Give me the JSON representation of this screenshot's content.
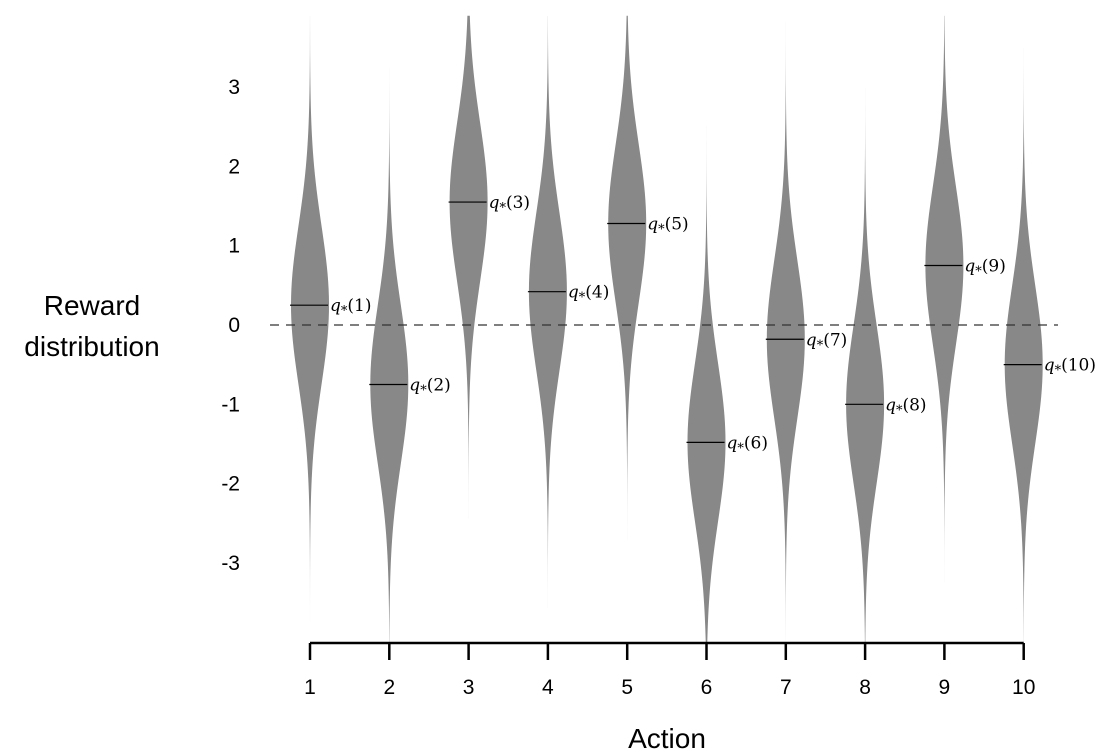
{
  "chart_data": {
    "type": "violin",
    "title": "",
    "xlabel": "Action",
    "ylabel_lines": [
      "Reward",
      "distribution"
    ],
    "categories": [
      "1",
      "2",
      "3",
      "4",
      "5",
      "6",
      "7",
      "8",
      "9",
      "10"
    ],
    "y_ticks": [
      3,
      2,
      1,
      0,
      -1,
      -2,
      -3
    ],
    "y_tick_labels": [
      "3",
      "2",
      "1",
      "0",
      "-1",
      "-2",
      "-3"
    ],
    "ylim": [
      -4,
      4
    ],
    "means": [
      0.25,
      -0.75,
      1.55,
      0.42,
      1.28,
      -1.48,
      -0.18,
      -1.0,
      0.75,
      -0.5
    ],
    "std": 1.0,
    "mean_labels": [
      "q*(1)",
      "q*(2)",
      "q*(3)",
      "q*(4)",
      "q*(5)",
      "q*(6)",
      "q*(7)",
      "q*(8)",
      "q*(9)",
      "q*(10)"
    ],
    "baseline": 0,
    "baseline_style": "dashed",
    "violin_color": "#888888",
    "grid": false
  }
}
